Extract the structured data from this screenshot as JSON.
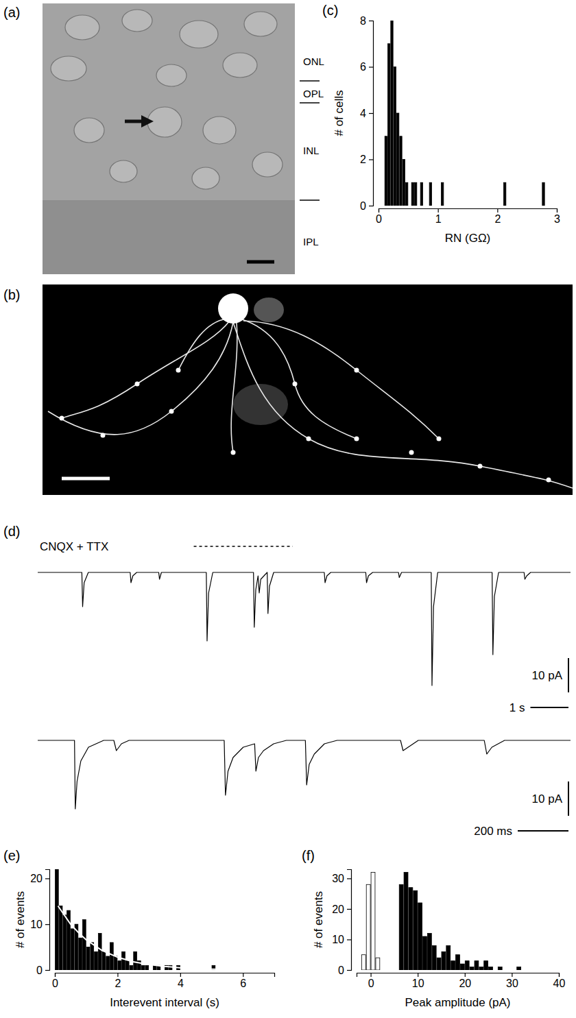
{
  "images": [
    {
      "panel": "(a)",
      "layers": [
        "ONL",
        "OPL",
        "INL",
        "IPL"
      ]
    },
    {
      "panel": "(b)"
    }
  ],
  "chart_data": [
    {
      "panel": "(c)",
      "type": "histogram",
      "color": "#000000",
      "bins": [
        0.1,
        0.15,
        0.2,
        0.25,
        0.3,
        0.35,
        0.4,
        0.45,
        0.5,
        0.55,
        0.6,
        0.65,
        0.7,
        0.75,
        0.8,
        0.85,
        0.9,
        0.95,
        1.0,
        1.05,
        1.1,
        1.15,
        1.2,
        1.25,
        1.3,
        1.35,
        1.4,
        1.45,
        1.5,
        1.55,
        1.6,
        1.65,
        1.7,
        1.75,
        1.8,
        1.85,
        1.9,
        1.95,
        2.0,
        2.05,
        2.1,
        2.15,
        2.2,
        2.25,
        2.3,
        2.35,
        2.4,
        2.45,
        2.5,
        2.55,
        2.6,
        2.65,
        2.7,
        2.75,
        2.8,
        2.85
      ],
      "counts": [
        3,
        7,
        8,
        6,
        4,
        3,
        2,
        1,
        0,
        1,
        1,
        0,
        1,
        0,
        0,
        1,
        0,
        0,
        0,
        1,
        0,
        0,
        0,
        0,
        0,
        0,
        0,
        0,
        0,
        0,
        0,
        0,
        0,
        0,
        0,
        0,
        0,
        0,
        0,
        0,
        1,
        0,
        0,
        0,
        0,
        0,
        0,
        0,
        0,
        0,
        0,
        0,
        0,
        1,
        0
      ],
      "x_label": "RN (GΩ)",
      "y_label": "# of cells",
      "xlim": [
        0,
        3
      ],
      "ylim": [
        0,
        8
      ],
      "xticks": [
        0,
        1,
        2,
        3
      ],
      "yticks": [
        0,
        2,
        4,
        6,
        8
      ]
    },
    {
      "panel": "(d)",
      "type": "line",
      "annotation": "CNQX + TTX",
      "traces": [
        {
          "x": [
            0,
            1.16,
            1.18,
            1.22,
            1.33,
            2.43,
            2.45,
            2.5,
            2.6,
            3.18,
            3.2,
            3.25,
            4.43,
            4.45,
            4.49,
            4.6,
            5.67,
            5.69,
            5.73,
            5.79,
            5.82,
            5.86,
            6.03,
            6.05,
            6.09,
            6.2,
            7.53,
            7.55,
            7.6,
            7.7,
            8.62,
            8.64,
            8.69,
            8.8,
            9.48,
            9.5,
            9.56,
            10.34,
            10.36,
            10.4,
            10.51,
            11.94,
            11.96,
            12.0,
            12.11,
            12.78,
            12.8,
            12.85,
            12.95,
            14
          ],
          "values": [
            0,
            0,
            -10,
            -3,
            0,
            0,
            -3,
            -1,
            0,
            0,
            -2,
            0,
            0,
            -20,
            -6,
            0,
            0,
            -16,
            -5,
            -1,
            -6,
            -2,
            0,
            -12,
            -4,
            0,
            0,
            -3,
            -1,
            0,
            0,
            -3,
            -1,
            0,
            0,
            -1.5,
            0,
            0,
            -33,
            -10,
            0,
            0,
            -24,
            -7,
            0,
            0,
            -2,
            -1,
            0,
            0
          ],
          "xlim": [
            0,
            14
          ],
          "ylim": [
            -36,
            4
          ],
          "span": [
            4.1,
            6.7
          ],
          "y_scale_bar": {
            "value": 10,
            "label": "10 pA"
          },
          "x_scale_bar": {
            "value": 1,
            "label": "1 s"
          }
        },
        {
          "x": [
            0,
            0.145,
            0.148,
            0.155,
            0.17,
            0.2,
            0.26,
            0.3,
            0.31,
            0.33,
            0.36,
            0.735,
            0.74,
            0.75,
            0.77,
            0.81,
            0.855,
            0.86,
            0.87,
            0.89,
            0.93,
            0.98,
            1.055,
            1.06,
            1.07,
            1.09,
            1.13,
            1.18,
            1.43,
            1.44,
            1.46,
            1.5,
            1.76,
            1.77,
            1.79,
            1.84,
            2.1
          ],
          "values": [
            0,
            0,
            -20,
            -12,
            -6,
            -2,
            0,
            0,
            -3,
            -1,
            0,
            0,
            -16,
            -9,
            -5,
            -2,
            -1,
            -9,
            -5,
            -3,
            -1,
            0,
            0,
            -13,
            -7,
            -4,
            -1,
            0,
            0,
            -3,
            -2,
            0,
            0,
            -4,
            -2,
            0,
            0
          ],
          "xlim": [
            0,
            2.1
          ],
          "ylim": [
            -22,
            4
          ],
          "y_scale_bar": {
            "value": 10,
            "label": "10 pA"
          },
          "x_scale_bar": {
            "value": 0.2,
            "label": "200 ms"
          }
        }
      ]
    },
    {
      "panel": "(e)",
      "type": "histogram",
      "color": "#000000",
      "bins": [
        0,
        0.125,
        0.25,
        0.375,
        0.5,
        0.625,
        0.75,
        0.875,
        1,
        1.125,
        1.25,
        1.375,
        1.5,
        1.625,
        1.75,
        1.875,
        2,
        2.125,
        2.25,
        2.375,
        2.5,
        2.625,
        2.75,
        2.875,
        3,
        3.125,
        3.25,
        3.375,
        3.5,
        3.625,
        3.75,
        3.875,
        4,
        4.125,
        4.25,
        4.375,
        4.5,
        4.625,
        4.75,
        4.875,
        5,
        5.125
      ],
      "counts": [
        22,
        14,
        12,
        13,
        9,
        10,
        7,
        11,
        5,
        6,
        4,
        8,
        4,
        3,
        6,
        3,
        2,
        4,
        2,
        1,
        4,
        2,
        1,
        1,
        0,
        1,
        1,
        0,
        1,
        1,
        0,
        1,
        0,
        0,
        0,
        0,
        0,
        0,
        0,
        0,
        1
      ],
      "fit": {
        "type": "line",
        "color": "#ffffff",
        "x": [
          0.1,
          0.25,
          0.5,
          0.75,
          1,
          1.5,
          2,
          2.5,
          3,
          3.5,
          4,
          4.5,
          5,
          6,
          7
        ],
        "values": [
          14,
          12.5,
          10,
          8.2,
          6.6,
          4.3,
          2.8,
          1.8,
          1.2,
          0.8,
          0.5,
          0.3,
          0.2,
          0.1,
          0.05
        ]
      },
      "x_label": "Interevent interval (s)",
      "y_label": "# of events",
      "xlim": [
        0,
        7
      ],
      "ylim": [
        0,
        22
      ],
      "xticks": [
        0,
        2,
        4,
        6
      ],
      "yticks": [
        0,
        10,
        20
      ]
    },
    {
      "panel": "(f)",
      "type": "histogram",
      "series": [
        {
          "color": "#ffffff",
          "bins": [
            -2,
            -1,
            0,
            1,
            2
          ],
          "counts": [
            5,
            28,
            32,
            4
          ]
        },
        {
          "color": "#000000",
          "bins": [
            6,
            7,
            8,
            9,
            10,
            11,
            12,
            13,
            14,
            15,
            16,
            17,
            18,
            19,
            20,
            21,
            22,
            23,
            24,
            25,
            26,
            27,
            28,
            29,
            30,
            31,
            32
          ],
          "counts": [
            28,
            32,
            27,
            26,
            22,
            11,
            12,
            8,
            4,
            6,
            8,
            3,
            5,
            2,
            3,
            1,
            3,
            1,
            3,
            1,
            0,
            1,
            0,
            0,
            0,
            1
          ]
        }
      ],
      "x_label": "Peak amplitude (pA)",
      "y_label": "# of events",
      "xlim": [
        -3,
        40
      ],
      "ylim": [
        0,
        33
      ],
      "xticks": [
        0,
        10,
        20,
        30,
        40
      ],
      "yticks": [
        0,
        10,
        20,
        30
      ]
    }
  ]
}
